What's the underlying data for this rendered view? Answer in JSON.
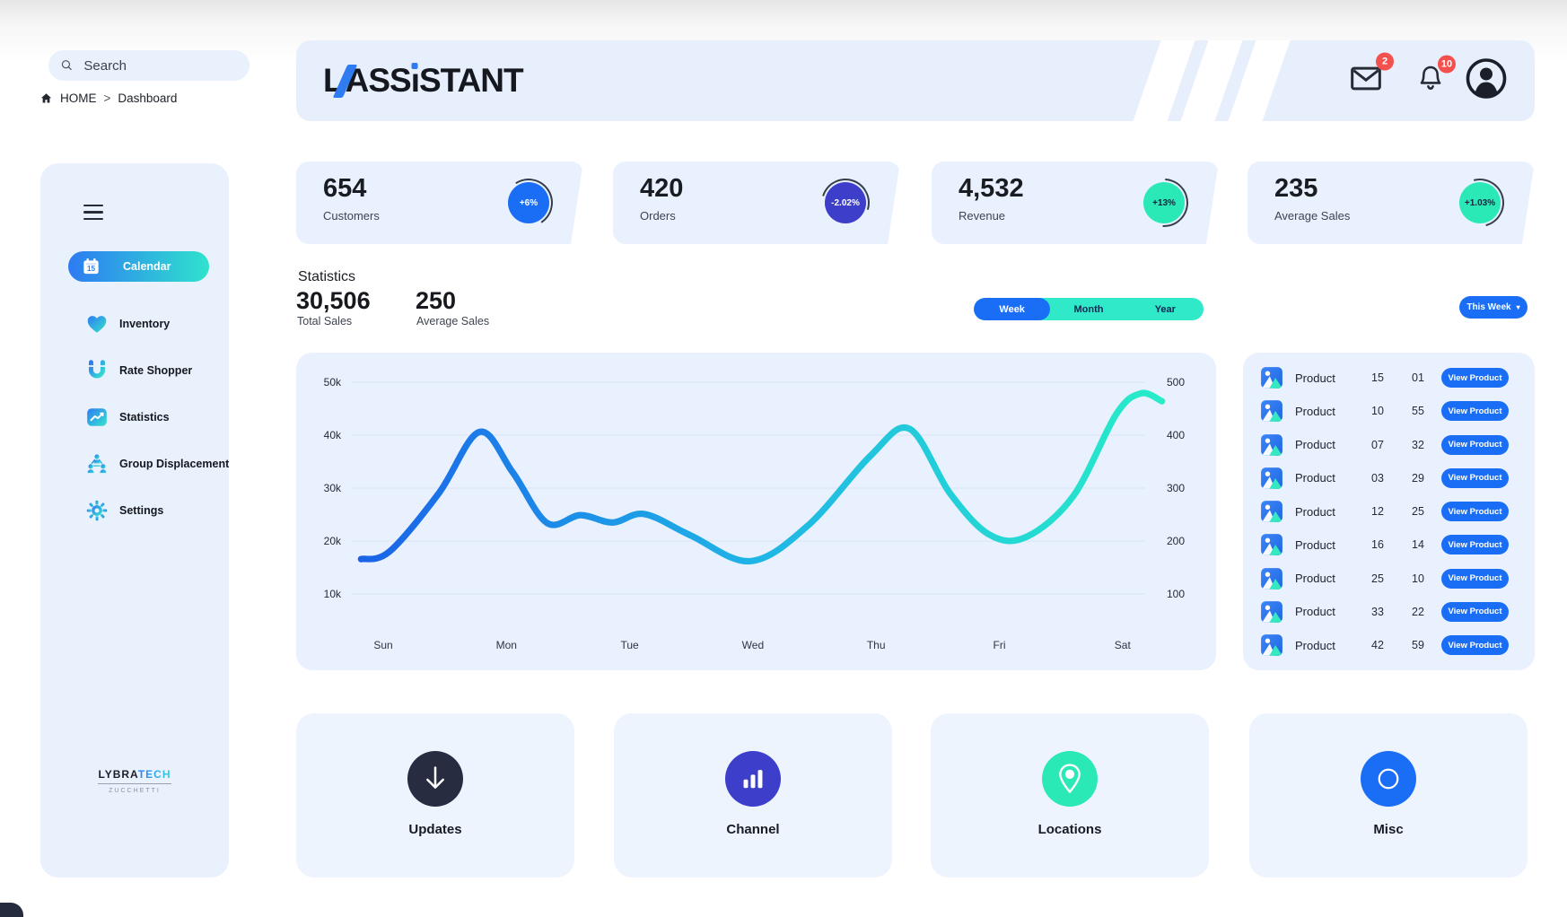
{
  "search": {
    "placeholder": "Search"
  },
  "breadcrumb": {
    "home": "HOME",
    "separator": ">",
    "current": "Dashboard"
  },
  "header": {
    "logo": {
      "part1": "L",
      "part2": "ASS",
      "part3_dotless_i": "ı",
      "part4": "STANT",
      "brand": "L'ASSISTANT"
    },
    "mail_badge": "2",
    "bell_badge": "10"
  },
  "stat_cards": [
    {
      "value": "654",
      "label": "Customers",
      "delta": "+6%",
      "badge_bg": "#1a6ef5",
      "badge_text": "#ffffff"
    },
    {
      "value": "420",
      "label": "Orders",
      "delta": "-2.02%",
      "badge_bg": "#3d3ec9",
      "badge_text": "#ffffff"
    },
    {
      "value": "4,532",
      "label": "Revenue",
      "delta": "+13%",
      "badge_bg": "#2be9b6",
      "badge_text": "#16233f"
    },
    {
      "value": "235",
      "label": "Average Sales",
      "delta": "+1.03%",
      "badge_bg": "#2be9b6",
      "badge_text": "#16233f"
    }
  ],
  "statistics": {
    "title": "Statistics",
    "total_sales": {
      "value": "30,506",
      "label": "Total Sales"
    },
    "average_sales": {
      "value": "250",
      "label": "Average Sales"
    },
    "period_tabs": [
      "Week",
      "Month",
      "Year"
    ],
    "active_tab": "Week",
    "range_selector": {
      "label": "This Week",
      "caret": "▾"
    }
  },
  "chart_data": {
    "type": "line",
    "title": "Statistics",
    "x_labels": [
      "Sun",
      "Mon",
      "Tue",
      "Wed",
      "Thu",
      "Fri",
      "Sat"
    ],
    "left_axis": {
      "ticks": [
        "50k",
        "40k",
        "30k",
        "20k",
        "10k"
      ],
      "min": 10000,
      "max": 50000
    },
    "right_axis": {
      "ticks": [
        "500",
        "400",
        "300",
        "200",
        "100"
      ],
      "min": 100,
      "max": 500
    },
    "grid": true,
    "legend": false,
    "series": [
      {
        "name": "Sales",
        "values_unit": "thousands",
        "gradient": [
          "#1a63e8",
          "#1fb6e6",
          "#27ecc8"
        ],
        "points": [
          [
            -0.18,
            16.6
          ],
          [
            0.05,
            18.0
          ],
          [
            0.45,
            29.0
          ],
          [
            0.78,
            40.6
          ],
          [
            1.05,
            33.0
          ],
          [
            1.33,
            23.4
          ],
          [
            1.6,
            24.9
          ],
          [
            1.86,
            23.5
          ],
          [
            2.12,
            25.1
          ],
          [
            2.5,
            21.0
          ],
          [
            2.98,
            16.2
          ],
          [
            3.45,
            23.0
          ],
          [
            3.95,
            36.0
          ],
          [
            4.27,
            41.2
          ],
          [
            4.6,
            29.0
          ],
          [
            4.92,
            21.2
          ],
          [
            5.22,
            20.8
          ],
          [
            5.6,
            28.5
          ],
          [
            5.95,
            44.0
          ],
          [
            6.15,
            47.9
          ],
          [
            6.32,
            46.4
          ]
        ]
      }
    ]
  },
  "products": {
    "action_label": "View Product",
    "rows": [
      {
        "name": "Product",
        "qty": "15",
        "code": "01"
      },
      {
        "name": "Product",
        "qty": "10",
        "code": "55"
      },
      {
        "name": "Product",
        "qty": "07",
        "code": "32"
      },
      {
        "name": "Product",
        "qty": "03",
        "code": "29"
      },
      {
        "name": "Product",
        "qty": "12",
        "code": "25"
      },
      {
        "name": "Product",
        "qty": "16",
        "code": "14"
      },
      {
        "name": "Product",
        "qty": "25",
        "code": "10"
      },
      {
        "name": "Product",
        "qty": "33",
        "code": "22"
      },
      {
        "name": "Product",
        "qty": "42",
        "code": "59"
      }
    ]
  },
  "sidebar": {
    "items": [
      {
        "label": "Calendar",
        "icon": "calendar",
        "active": true
      },
      {
        "label": "Inventory",
        "icon": "heart",
        "active": false
      },
      {
        "label": "Rate Shopper",
        "icon": "magnet",
        "active": false
      },
      {
        "label": "Statistics",
        "icon": "stats",
        "active": false
      },
      {
        "label": "Group Displacement",
        "icon": "group",
        "active": false
      },
      {
        "label": "Settings",
        "icon": "gear",
        "active": false
      }
    ],
    "brand_footer": {
      "primary": "LYBRA",
      "accent": "TECH",
      "subtitle": "ZUCCHETTI"
    }
  },
  "footer_cards": [
    {
      "label": "Updates",
      "icon": "download-arrow",
      "bg": "#272c40"
    },
    {
      "label": "Channel",
      "icon": "bar-chart",
      "bg": "#3d3ec9"
    },
    {
      "label": "Locations",
      "icon": "location-pin",
      "bg": "#2be9b6"
    },
    {
      "label": "Misc",
      "icon": "circle-outline",
      "bg": "#1a6ef5"
    }
  ],
  "theme": {
    "accent_blue": "#1a6ef5",
    "accent_indigo": "#3d3ec9",
    "accent_teal": "#2be9b6",
    "dark_navy": "#272c40",
    "badge_red": "#f4514e",
    "panel_bg": "#e9f1fe"
  }
}
